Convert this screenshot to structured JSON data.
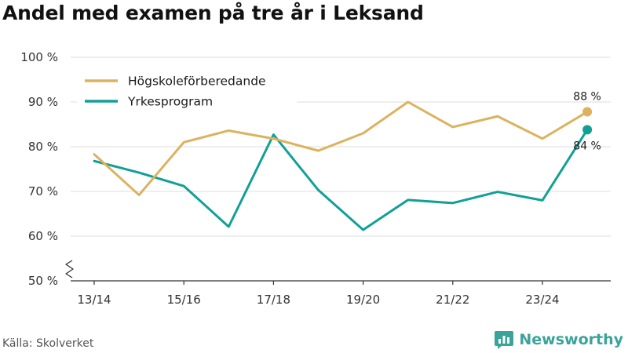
{
  "title": "Andel med examen på tre år i Leksand",
  "source": "Källa: Skolverket",
  "brand": {
    "name": "Newsworthy",
    "icon": "newsworthy-logo-icon"
  },
  "colors": {
    "series1": "#dcb25f",
    "series2": "#12a095",
    "grid": "#dddddd",
    "axis": "#333333",
    "brand": "#3aa49a"
  },
  "chart_data": {
    "type": "line",
    "title": "Andel med examen på tre år i Leksand",
    "xlabel": "",
    "ylabel": "",
    "categories": [
      "13/14",
      "14/15",
      "15/16",
      "16/17",
      "17/18",
      "18/19",
      "19/20",
      "20/21",
      "21/22",
      "22/23",
      "23/24",
      "24/25"
    ],
    "x_tick_labels": [
      "13/14",
      "",
      "15/16",
      "",
      "17/18",
      "",
      "19/20",
      "",
      "21/22",
      "",
      "23/24",
      ""
    ],
    "y_ticks": [
      50,
      60,
      70,
      80,
      90,
      100
    ],
    "y_tick_labels": [
      "50 %",
      "60 %",
      "70 %",
      "80 %",
      "90 %",
      "100 %"
    ],
    "ylim": [
      50,
      100
    ],
    "y_axis_break": true,
    "grid": true,
    "legend_position": "top-left",
    "series": [
      {
        "name": "Högskoleförberedande",
        "values": [
          78.3,
          69.2,
          81.0,
          83.6,
          81.8,
          79.1,
          83.0,
          90.0,
          84.4,
          86.8,
          81.8,
          87.8
        ],
        "end_label": "88 %"
      },
      {
        "name": "Yrkesprogram",
        "values": [
          76.8,
          74.2,
          71.2,
          62.1,
          82.7,
          70.3,
          61.4,
          68.1,
          67.4,
          69.9,
          68.0,
          83.8
        ],
        "end_label": "84 %"
      }
    ]
  }
}
